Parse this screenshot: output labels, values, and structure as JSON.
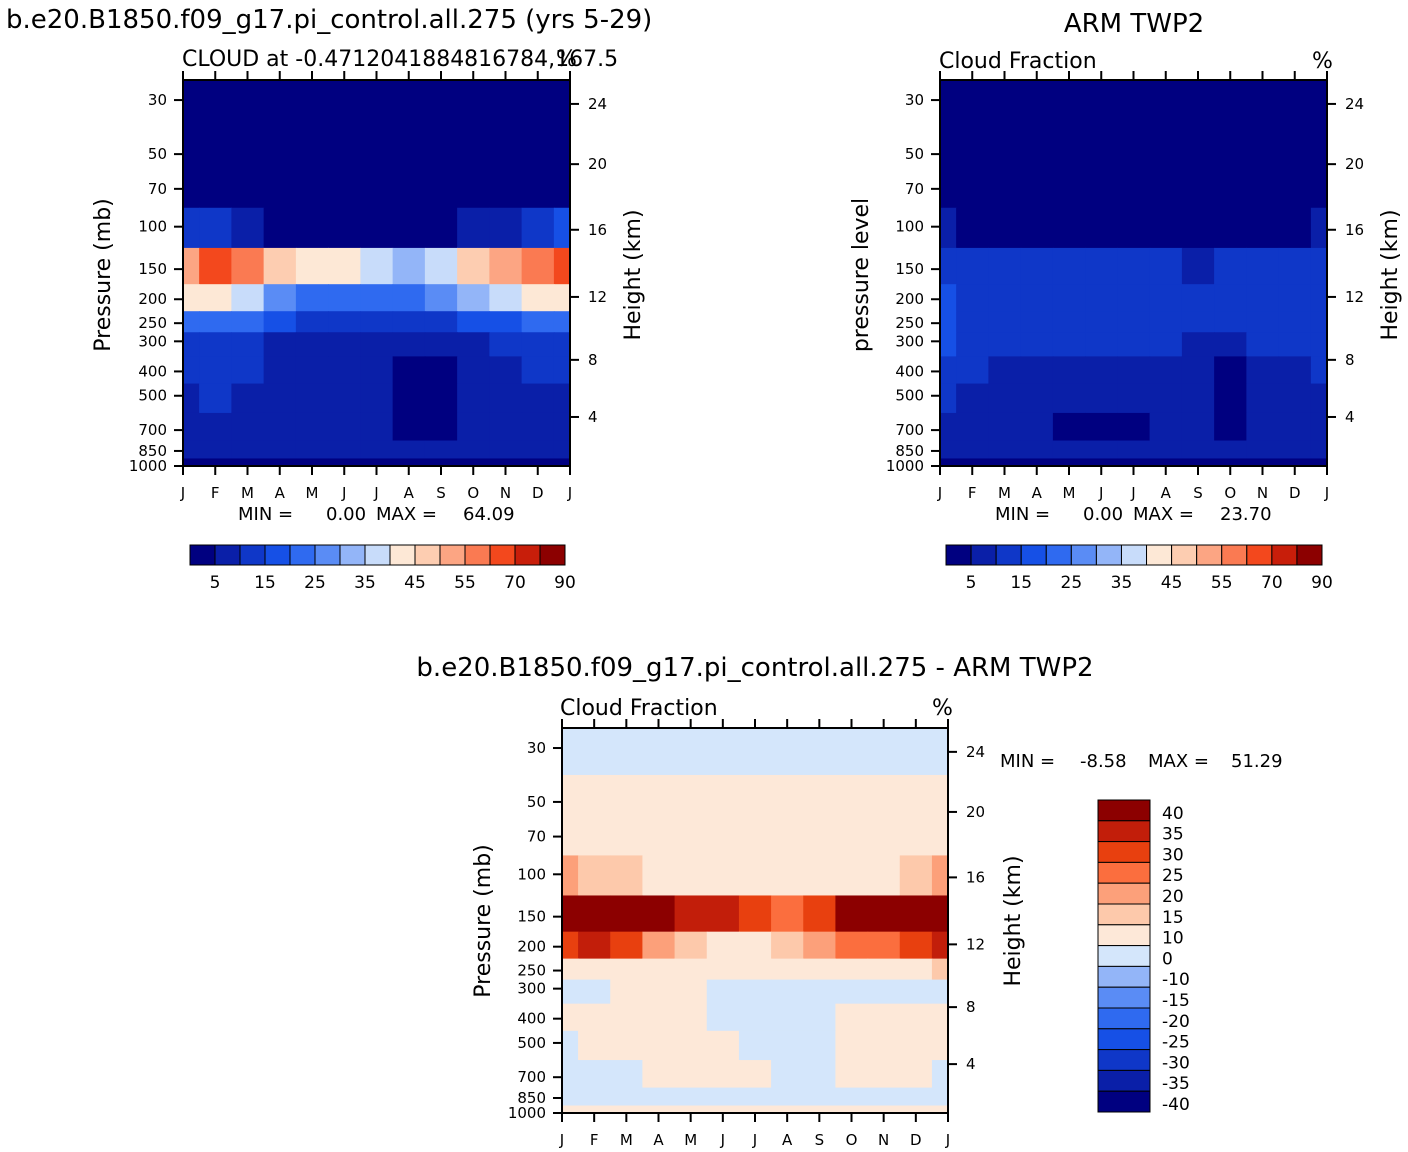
{
  "palettes": {
    "cloud": [
      "#000080",
      "#0a1fa8",
      "#0f37c8",
      "#1650e6",
      "#2f6af0",
      "#5a8cf5",
      "#93b5f8",
      "#c8dcfa",
      "#fde8d6",
      "#fdcdb1",
      "#fca583",
      "#fa7a52",
      "#f3481d",
      "#c81e0a",
      "#8c0000"
    ],
    "diff": [
      "#000080",
      "#0a1fa8",
      "#0f37c8",
      "#1650e6",
      "#2f6af0",
      "#5a8cf5",
      "#93b5f8",
      "#d4e6fb",
      "#fde8d8",
      "#fdc9ab",
      "#fca07a",
      "#fb6e3e",
      "#e8400f",
      "#c21e0a",
      "#8c0000"
    ]
  },
  "charts": [
    {
      "id": "model",
      "title": "b.e20.B1850.f09_g17.pi_control.all.275 (yrs 5-29)",
      "subtitle_left": "CLOUD at -0.4712041884816784,167.5",
      "subtitle_right": "%",
      "ylabel_left": "Pressure (mb)",
      "ylabel_right": "Height (km)",
      "stats_label_min": "MIN =",
      "stats_min": "0.00",
      "stats_label_max": "MAX =",
      "stats_max": "64.09",
      "colorbar_labels": [
        "5",
        "15",
        "25",
        "35",
        "45",
        "55",
        "70",
        "90"
      ]
    },
    {
      "id": "obs",
      "title": "ARM TWP2",
      "subtitle_left": "Cloud Fraction",
      "subtitle_right": "%",
      "ylabel_left": "pressure level",
      "ylabel_right": "Height (km)",
      "stats_label_min": "MIN =",
      "stats_min": "0.00",
      "stats_label_max": "MAX =",
      "stats_max": "23.70",
      "colorbar_labels": [
        "5",
        "15",
        "25",
        "35",
        "45",
        "55",
        "70",
        "90"
      ]
    },
    {
      "id": "diff",
      "title": "b.e20.B1850.f09_g17.pi_control.all.275 - ARM TWP2",
      "subtitle_left": "Cloud Fraction",
      "subtitle_right": "%",
      "ylabel_left": "Pressure (mb)",
      "ylabel_right": "Height (km)",
      "stats_label_min": "MIN =",
      "stats_min": "-8.58",
      "stats_label_max": "MAX =",
      "stats_max": "51.29",
      "colorbar_labels": [
        "40",
        "35",
        "30",
        "25",
        "20",
        "15",
        "10",
        "0",
        "-10",
        "-15",
        "-20",
        "-25",
        "-30",
        "-35",
        "-40"
      ]
    }
  ],
  "chart_data": [
    {
      "type": "heatmap",
      "title": "b.e20.B1850.f09_g17.pi_control.all.275 (yrs 5-29)",
      "subtitle": "CLOUD at -0.4712041884816784,167.5",
      "units": "%",
      "x": [
        "J",
        "F",
        "M",
        "A",
        "M",
        "J",
        "J",
        "A",
        "S",
        "O",
        "N",
        "D",
        "J"
      ],
      "y_pressure_mb": [
        30,
        50,
        70,
        100,
        150,
        200,
        250,
        300,
        400,
        500,
        700,
        850,
        1000
      ],
      "y_height_km": [
        24,
        20,
        16,
        12,
        8,
        4
      ],
      "levels": [
        5,
        10,
        15,
        20,
        25,
        30,
        35,
        40,
        45,
        50,
        55,
        60,
        70,
        80,
        90
      ],
      "min": 0.0,
      "max": 64.09,
      "values_percent": [
        [
          0,
          0,
          0,
          0,
          0,
          0,
          0,
          0,
          0,
          0,
          0,
          0,
          0
        ],
        [
          0,
          0,
          0,
          0,
          0,
          0,
          0,
          0,
          0,
          0,
          0,
          0,
          0
        ],
        [
          1,
          0,
          0,
          0,
          0,
          0,
          0,
          0,
          0,
          0,
          0,
          0,
          1
        ],
        [
          14,
          10,
          6,
          4,
          3,
          2,
          2,
          2,
          3,
          5,
          7,
          11,
          15
        ],
        [
          52,
          60,
          58,
          46,
          44,
          42,
          38,
          34,
          36,
          46,
          50,
          58,
          63
        ],
        [
          40,
          42,
          38,
          28,
          24,
          22,
          22,
          24,
          28,
          34,
          36,
          40,
          44
        ],
        [
          24,
          22,
          20,
          16,
          14,
          12,
          12,
          13,
          14,
          16,
          18,
          20,
          24
        ],
        [
          12,
          12,
          12,
          9,
          8,
          8,
          7,
          7,
          8,
          9,
          10,
          11,
          12
        ],
        [
          11,
          11,
          10,
          9,
          7,
          6,
          5,
          3,
          3,
          5,
          8,
          10,
          11
        ],
        [
          9,
          10,
          9,
          8,
          6,
          6,
          5,
          3,
          3,
          5,
          7,
          9,
          9
        ],
        [
          8,
          7,
          7,
          7,
          6,
          6,
          6,
          4,
          3,
          5,
          7,
          8,
          8
        ],
        [
          6,
          6,
          6,
          6,
          6,
          6,
          6,
          6,
          6,
          6,
          6,
          6,
          6
        ],
        [
          4,
          4,
          4,
          4,
          4,
          4,
          4,
          4,
          4,
          4,
          4,
          4,
          4
        ]
      ]
    },
    {
      "type": "heatmap",
      "title": "ARM TWP2",
      "subtitle": "Cloud Fraction",
      "units": "%",
      "x": [
        "J",
        "F",
        "M",
        "A",
        "M",
        "J",
        "J",
        "A",
        "S",
        "O",
        "N",
        "D",
        "J"
      ],
      "y_pressure_mb": [
        30,
        50,
        70,
        100,
        150,
        200,
        250,
        300,
        400,
        500,
        700,
        850,
        1000
      ],
      "y_height_km": [
        24,
        20,
        16,
        12,
        8,
        4
      ],
      "levels": [
        5,
        10,
        15,
        20,
        25,
        30,
        35,
        40,
        45,
        50,
        55,
        60,
        70,
        80,
        90
      ],
      "min": 0.0,
      "max": 23.7,
      "values_percent": [
        [
          0,
          0,
          0,
          0,
          0,
          0,
          0,
          0,
          0,
          0,
          0,
          0,
          0
        ],
        [
          0,
          0,
          0,
          0,
          0,
          0,
          0,
          0,
          0,
          0,
          0,
          0,
          0
        ],
        [
          0,
          0,
          0,
          0,
          0,
          0,
          0,
          0,
          0,
          0,
          0,
          0,
          0
        ],
        [
          5,
          3,
          2,
          2,
          2,
          2,
          2,
          2,
          2,
          2,
          2,
          3,
          5
        ],
        [
          12,
          12,
          11,
          11,
          11,
          11,
          10,
          11,
          9,
          11,
          11,
          11,
          12
        ],
        [
          16,
          12,
          12,
          11,
          12,
          14,
          13,
          12,
          11,
          12,
          13,
          12,
          14
        ],
        [
          18,
          14,
          12,
          12,
          12,
          12,
          11,
          12,
          12,
          11,
          12,
          12,
          13
        ],
        [
          16,
          14,
          12,
          12,
          11,
          10,
          10,
          10,
          9,
          6,
          10,
          12,
          12
        ],
        [
          11,
          11,
          9,
          8,
          7,
          6,
          6,
          6,
          5,
          4,
          6,
          8,
          10
        ],
        [
          10,
          9,
          8,
          7,
          7,
          6,
          6,
          7,
          5,
          3,
          6,
          8,
          9
        ],
        [
          8,
          7,
          6,
          6,
          3,
          4,
          3,
          5,
          6,
          3,
          6,
          7,
          8
        ],
        [
          5,
          5,
          5,
          5,
          5,
          5,
          5,
          5,
          5,
          5,
          5,
          5,
          5
        ],
        [
          1,
          1,
          1,
          1,
          1,
          1,
          1,
          1,
          1,
          1,
          1,
          1,
          1
        ]
      ]
    },
    {
      "type": "heatmap",
      "title": "b.e20.B1850.f09_g17.pi_control.all.275 - ARM TWP2",
      "subtitle": "Cloud Fraction",
      "units": "%",
      "x": [
        "J",
        "F",
        "M",
        "A",
        "M",
        "J",
        "J",
        "A",
        "S",
        "O",
        "N",
        "D",
        "J"
      ],
      "y_pressure_mb": [
        30,
        50,
        70,
        100,
        150,
        200,
        250,
        300,
        400,
        500,
        700,
        850,
        1000
      ],
      "y_height_km": [
        24,
        20,
        16,
        12,
        8,
        4
      ],
      "levels": [
        -40,
        -35,
        -30,
        -25,
        -20,
        -15,
        -10,
        0,
        10,
        15,
        20,
        25,
        30,
        35,
        40
      ],
      "min": -8.58,
      "max": 51.29,
      "values_percent": [
        [
          -2,
          -2,
          -2,
          -2,
          -2,
          -2,
          -2,
          -2,
          -2,
          -2,
          -2,
          -2,
          -2
        ],
        [
          1,
          1,
          1,
          1,
          1,
          1,
          1,
          1,
          1,
          1,
          1,
          1,
          1
        ],
        [
          2,
          2,
          2,
          2,
          2,
          2,
          2,
          2,
          2,
          2,
          2,
          2,
          2
        ],
        [
          15,
          12,
          10,
          8,
          6,
          5,
          4,
          4,
          5,
          6,
          8,
          12,
          16
        ],
        [
          42,
          48,
          47,
          35,
          33,
          31,
          28,
          24,
          26,
          35,
          39,
          47,
          51
        ],
        [
          25,
          30,
          26,
          17,
          12,
          8,
          9,
          12,
          17,
          22,
          23,
          28,
          30
        ],
        [
          8,
          8,
          8,
          4,
          2,
          1,
          1,
          1,
          2,
          5,
          6,
          8,
          11
        ],
        [
          -2,
          -2,
          1,
          1,
          1,
          -2,
          -3,
          -2,
          -1,
          -3,
          -2,
          -1,
          -1
        ],
        [
          1,
          1,
          1,
          1,
          1,
          -1,
          -2,
          -3,
          -2,
          1,
          2,
          2,
          1
        ],
        [
          -1,
          1,
          1,
          1,
          1,
          1,
          -1,
          -2,
          -2,
          1,
          1,
          1,
          1
        ],
        [
          -1,
          -2,
          -1,
          1,
          1,
          1,
          1,
          -2,
          -3,
          1,
          1,
          1,
          -1
        ],
        [
          -3,
          -3,
          -3,
          -3,
          -2,
          -3,
          -3,
          -3,
          -3,
          -3,
          -3,
          -3,
          -3
        ],
        [
          1,
          1,
          1,
          1,
          1,
          1,
          1,
          1,
          1,
          1,
          1,
          1,
          1
        ]
      ]
    }
  ]
}
